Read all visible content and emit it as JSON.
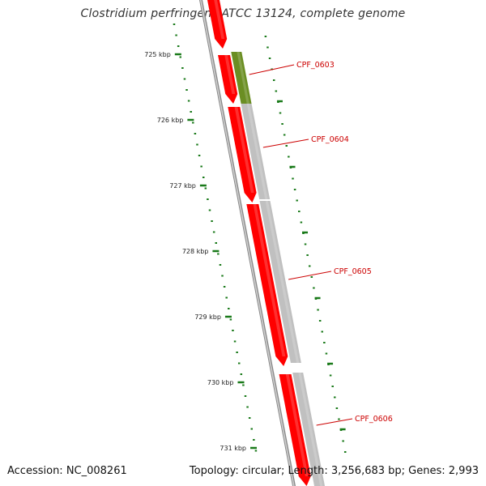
{
  "title": "Clostridium perfringens ATCC 13124, complete genome",
  "footer": {
    "accession": "Accession: NC_008261",
    "stats": "Topology: circular; Length: 3,256,683 bp; Genes: 2,993"
  },
  "colors": {
    "forward_gene": "#ff0000",
    "reverse_gene": "#c0c0c0",
    "highlight_gene": "#6b8e23",
    "tick": "#1a7a1a",
    "label": "#cc0000",
    "backbone": "#808080"
  },
  "scale": {
    "ticks": [
      {
        "label": "725 kbp"
      },
      {
        "label": "726 kbp"
      },
      {
        "label": "727 kbp"
      },
      {
        "label": "728 kbp"
      },
      {
        "label": "729 kbp"
      },
      {
        "label": "730 kbp"
      },
      {
        "label": "731 kbp"
      }
    ]
  },
  "genes": [
    {
      "id": "CPF_0603",
      "label": "CPF_0603"
    },
    {
      "id": "CPF_0604",
      "label": "CPF_0604"
    },
    {
      "id": "CPF_0605",
      "label": "CPF_0605"
    },
    {
      "id": "CPF_0606",
      "label": "CPF_0606"
    }
  ]
}
